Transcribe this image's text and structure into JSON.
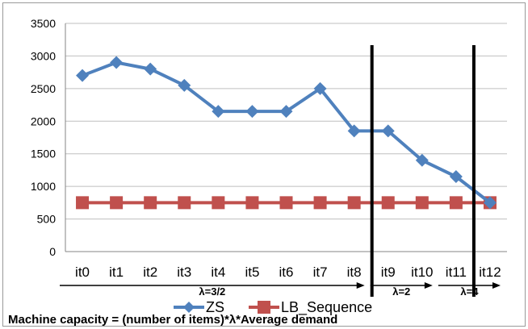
{
  "chart_data": {
    "type": "line",
    "title": "",
    "xlabel": "",
    "ylabel": "",
    "categories": [
      "it0",
      "it1",
      "it2",
      "it3",
      "it4",
      "it5",
      "it6",
      "it7",
      "it8",
      "it9",
      "it10",
      "it11",
      "it12"
    ],
    "ylim": [
      0,
      3500
    ],
    "yticks": [
      0,
      500,
      1000,
      1500,
      2000,
      2500,
      3000,
      3500
    ],
    "grid": true,
    "legend_position": "bottom",
    "series": [
      {
        "name": "ZS",
        "color": "#4F81BD",
        "marker": "diamond",
        "values": [
          2700,
          2900,
          2800,
          2550,
          2150,
          2150,
          2150,
          2500,
          1850,
          1850,
          1400,
          1150,
          750
        ]
      },
      {
        "name": "LB_Sequence",
        "color": "#C0504D",
        "marker": "square",
        "values": [
          750,
          750,
          750,
          750,
          750,
          750,
          750,
          750,
          750,
          750,
          750,
          750,
          750
        ]
      }
    ],
    "annotations": {
      "phase_boundaries_after_category": [
        8,
        11
      ],
      "phases": [
        {
          "label": "λ=3/2",
          "from": 0,
          "to": 8
        },
        {
          "label": "λ=2",
          "from": 9,
          "to": 10
        },
        {
          "label": "λ=4",
          "from": 11,
          "to": 12
        }
      ]
    },
    "caption": "Machine capacity = (number of items)*λ*Average demand"
  }
}
